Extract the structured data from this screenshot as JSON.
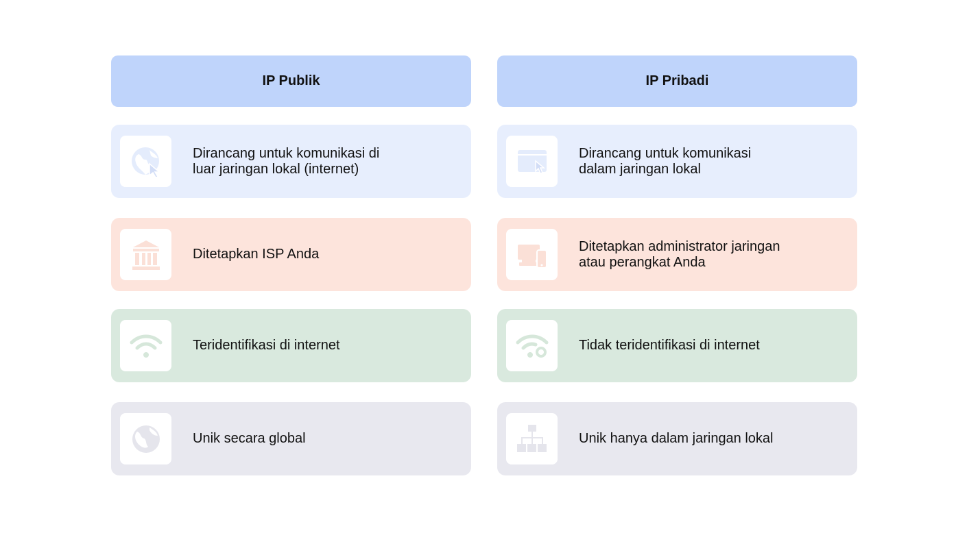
{
  "colors": {
    "header_bg": "#bfd4fb",
    "row_blue": "#e7eefd",
    "row_pink": "#fde4dc",
    "row_green": "#d9e9de",
    "row_gray": "#e8e8ef",
    "icon_blue": "#e4ecfc",
    "icon_pink": "#fbe0d7",
    "icon_green": "#d6e7da",
    "icon_gray": "#e5e5ec"
  },
  "left": {
    "title": "IP Publik",
    "rows": [
      {
        "text": "Dirancang untuk komunikasi di\nluar jaringan lokal (internet)",
        "icon": "globe-cursor-icon"
      },
      {
        "text": "Ditetapkan ISP Anda",
        "icon": "bank-building-icon"
      },
      {
        "text": "Teridentifikasi di internet",
        "icon": "wifi-icon"
      },
      {
        "text": "Unik secara global",
        "icon": "globe-icon"
      }
    ]
  },
  "right": {
    "title": "IP Pribadi",
    "rows": [
      {
        "text": "Dirancang untuk komunikasi\ndalam jaringan lokal",
        "icon": "browser-cursor-icon"
      },
      {
        "text": "Ditetapkan administrator jaringan\natau perangkat Anda",
        "icon": "devices-icon"
      },
      {
        "text": "Tidak teridentifikasi di internet",
        "icon": "wifi-blocked-icon"
      },
      {
        "text": "Unik hanya dalam jaringan lokal",
        "icon": "network-tree-icon"
      }
    ]
  }
}
